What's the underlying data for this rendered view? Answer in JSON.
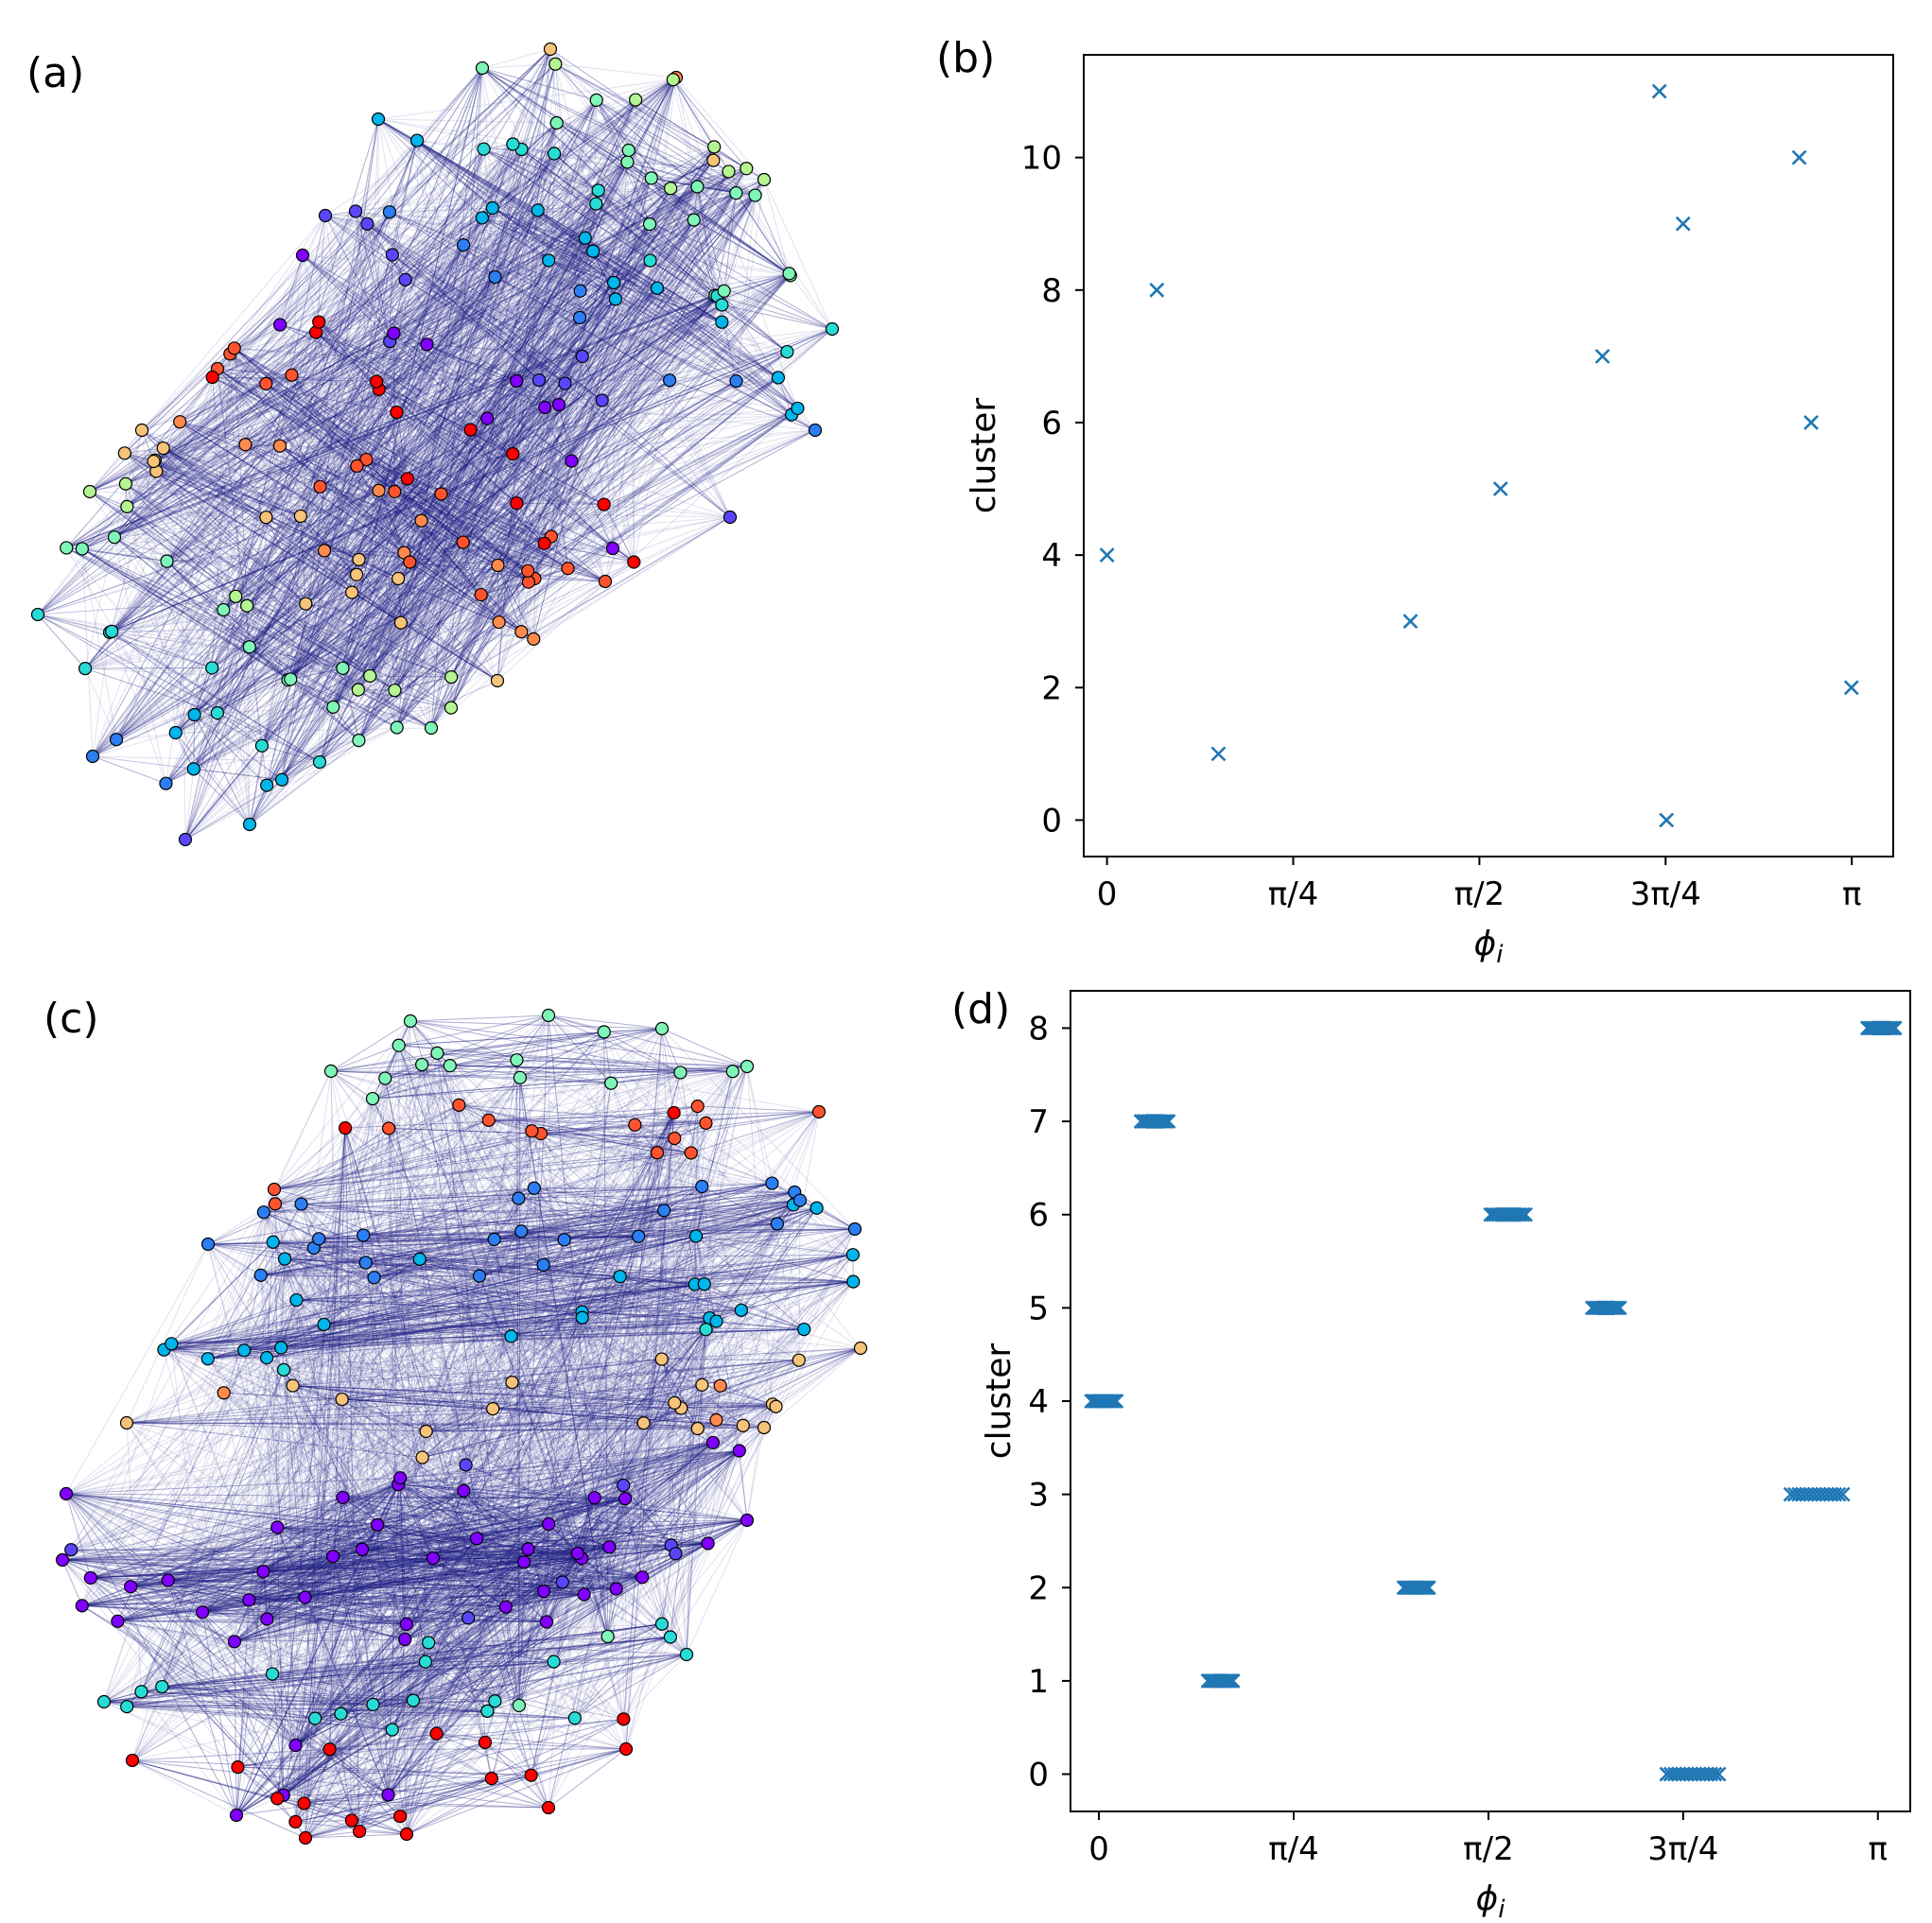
{
  "panel_labels": {
    "a": "(a)",
    "b": "(b)",
    "c": "(c)",
    "d": "(d)"
  },
  "colors": {
    "edge": "#1a1a80",
    "marker": "#1f77b4",
    "node_outline": "#000000",
    "palette": [
      "#8000ff",
      "#5a46fa",
      "#2c7ef2",
      "#00b5eb",
      "#28dbd6",
      "#7ff5b8",
      "#b5f493",
      "#f6c37a",
      "#ff8a4e",
      "#ff5330",
      "#ff0000"
    ]
  },
  "chart_data": [
    {
      "id": "a",
      "type": "network",
      "title": "",
      "nodes": 180,
      "clusters": 12,
      "note": "network graph of oscillator nodes colored by cluster"
    },
    {
      "id": "b",
      "type": "scatter",
      "title": "",
      "xlabel": "ϕ",
      "xlabel_sub": "i",
      "ylabel": "cluster",
      "xlim": [
        -0.0982,
        3.3164
      ],
      "ylim": [
        -0.55,
        11.55
      ],
      "xticks": [
        0,
        0.7854,
        1.5708,
        2.3562,
        3.1416
      ],
      "xtick_labels": [
        "0",
        "π/4",
        "π/2",
        "3π/4",
        "π"
      ],
      "yticks": [
        0,
        2,
        4,
        6,
        8,
        10
      ],
      "ytick_labels": [
        "0",
        "2",
        "4",
        "6",
        "8",
        "10"
      ],
      "marker": "x",
      "points": [
        {
          "x": 0.0,
          "y": 4
        },
        {
          "x": 0.21,
          "y": 8
        },
        {
          "x": 0.47,
          "y": 1
        },
        {
          "x": 1.28,
          "y": 3
        },
        {
          "x": 1.66,
          "y": 5
        },
        {
          "x": 2.09,
          "y": 7
        },
        {
          "x": 2.33,
          "y": 11
        },
        {
          "x": 2.36,
          "y": 0
        },
        {
          "x": 2.43,
          "y": 9
        },
        {
          "x": 2.92,
          "y": 10
        },
        {
          "x": 2.97,
          "y": 6
        },
        {
          "x": 3.14,
          "y": 2
        }
      ]
    },
    {
      "id": "c",
      "type": "network",
      "title": "",
      "nodes": 200,
      "clusters": 9,
      "note": "network graph of oscillator nodes colored by cluster"
    },
    {
      "id": "d",
      "type": "scatter",
      "title": "",
      "xlabel": "ϕ",
      "xlabel_sub": "i",
      "ylabel": "cluster",
      "xlim": [
        -0.1147,
        3.2721
      ],
      "ylim": [
        -0.4,
        8.4
      ],
      "xticks": [
        0,
        0.7854,
        1.5708,
        2.3562,
        3.1416
      ],
      "xtick_labels": [
        "0",
        "π/4",
        "π/2",
        "3π/4",
        "π"
      ],
      "yticks": [
        0,
        1,
        2,
        3,
        4,
        5,
        6,
        7,
        8
      ],
      "ytick_labels": [
        "0",
        "1",
        "2",
        "3",
        "4",
        "5",
        "6",
        "7",
        "8"
      ],
      "marker": "x",
      "groups": [
        {
          "y": 4,
          "x_min": -0.03,
          "x_max": 0.07
        },
        {
          "y": 7,
          "x_min": 0.17,
          "x_max": 0.28
        },
        {
          "y": 1,
          "x_min": 0.44,
          "x_max": 0.54
        },
        {
          "y": 2,
          "x_min": 1.23,
          "x_max": 1.33
        },
        {
          "y": 6,
          "x_min": 1.58,
          "x_max": 1.72
        },
        {
          "y": 5,
          "x_min": 1.99,
          "x_max": 2.1
        },
        {
          "y": 0,
          "x_min": 2.29,
          "x_max": 2.5
        },
        {
          "y": 3,
          "x_min": 2.79,
          "x_max": 3.0
        },
        {
          "y": 8,
          "x_min": 3.1,
          "x_max": 3.21
        }
      ]
    }
  ]
}
